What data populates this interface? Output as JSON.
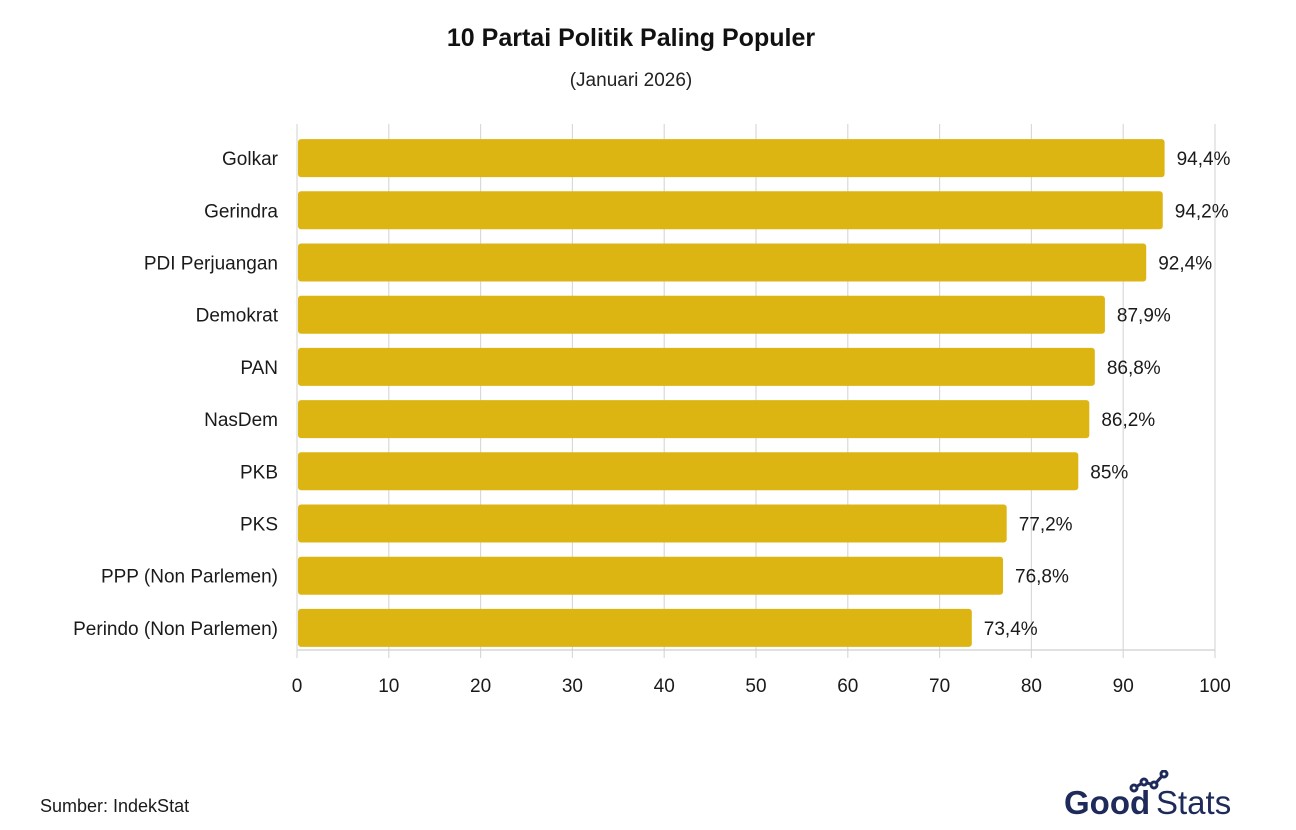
{
  "chart_data": {
    "type": "bar",
    "orientation": "horizontal",
    "title": "10 Partai Politik Paling Populer",
    "subtitle": "(Januari 2026)",
    "categories": [
      "Golkar",
      "Gerindra",
      "PDI Perjuangan",
      "Demokrat",
      "PAN",
      "NasDem",
      "PKB",
      "PKS",
      "PPP (Non Parlemen)",
      "Perindo (Non Parlemen)"
    ],
    "values": [
      94.4,
      94.2,
      92.4,
      87.9,
      86.8,
      86.2,
      85,
      77.2,
      76.8,
      73.4
    ],
    "value_labels": [
      "94,4%",
      "94,2%",
      "92,4%",
      "87,9%",
      "86,8%",
      "86,2%",
      "85%",
      "77,2%",
      "76,8%",
      "73,4%"
    ],
    "xlim": [
      0,
      100
    ],
    "xticks": [
      0,
      10,
      20,
      30,
      40,
      50,
      60,
      70,
      80,
      90,
      100
    ],
    "xlabel": "",
    "ylabel": "",
    "grid": "vertical",
    "legend": "none",
    "bar_color": "#DDB512"
  },
  "source": "Sumber: IndekStat",
  "brand": {
    "logo_left": "Good",
    "logo_right": "Stats",
    "color": "#1e2a5a"
  }
}
